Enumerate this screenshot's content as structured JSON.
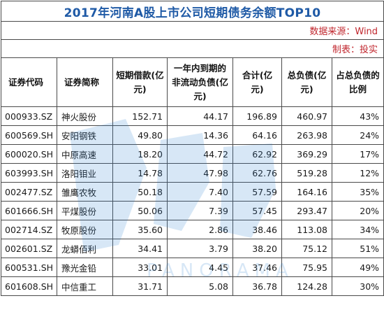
{
  "title": "2017年河南A股上市公司短期债务余额TOP10",
  "source": "数据来源：Wind",
  "maker": "制表：投实",
  "watermark_text": "PANORAMA",
  "headers": {
    "code": "证券代码",
    "name": "证券简称",
    "short_loan": "短期借款(亿元)",
    "noncurrent_due": "一年内到期的非流动负债(亿元)",
    "total": "合计(亿元)",
    "total_liab": "总负债(亿元)",
    "ratio": "占总负债的比例"
  },
  "rows": [
    {
      "code": "000933.SZ",
      "name": "神火股份",
      "short_loan": "152.71",
      "noncurrent_due": "44.17",
      "total": "196.89",
      "total_liab": "460.97",
      "ratio": "43%"
    },
    {
      "code": "600569.SH",
      "name": "安阳钢铁",
      "short_loan": "49.80",
      "noncurrent_due": "14.36",
      "total": "64.16",
      "total_liab": "263.98",
      "ratio": "24%"
    },
    {
      "code": "600020.SH",
      "name": "中原高速",
      "short_loan": "18.20",
      "noncurrent_due": "44.72",
      "total": "62.92",
      "total_liab": "369.29",
      "ratio": "17%"
    },
    {
      "code": "603993.SH",
      "name": "洛阳钼业",
      "short_loan": "14.78",
      "noncurrent_due": "47.98",
      "total": "62.76",
      "total_liab": "519.28",
      "ratio": "12%"
    },
    {
      "code": "002477.SZ",
      "name": "雏鹰农牧",
      "short_loan": "50.18",
      "noncurrent_due": "7.40",
      "total": "57.59",
      "total_liab": "164.16",
      "ratio": "35%"
    },
    {
      "code": "601666.SH",
      "name": "平煤股份",
      "short_loan": "50.06",
      "noncurrent_due": "7.39",
      "total": "57.45",
      "total_liab": "293.47",
      "ratio": "20%"
    },
    {
      "code": "002714.SZ",
      "name": "牧原股份",
      "short_loan": "35.60",
      "noncurrent_due": "2.86",
      "total": "38.46",
      "total_liab": "113.08",
      "ratio": "34%"
    },
    {
      "code": "002601.SZ",
      "name": "龙蟒佰利",
      "short_loan": "34.41",
      "noncurrent_due": "3.79",
      "total": "38.20",
      "total_liab": "75.12",
      "ratio": "51%"
    },
    {
      "code": "600531.SH",
      "name": "豫光金铅",
      "short_loan": "33.01",
      "noncurrent_due": "4.45",
      "total": "37.46",
      "total_liab": "75.95",
      "ratio": "49%"
    },
    {
      "code": "601608.SH",
      "name": "中信重工",
      "short_loan": "31.71",
      "noncurrent_due": "5.08",
      "total": "36.78",
      "total_liab": "124.28",
      "ratio": "30%"
    }
  ]
}
